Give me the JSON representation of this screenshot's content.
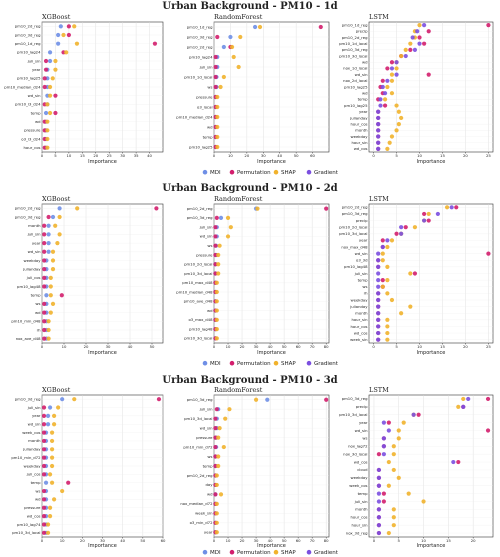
{
  "colors": {
    "MDI": "#6f8fe6",
    "Permutation": "#d31e6d",
    "SHAP": "#f1b22c",
    "Gradient": "#7b4fe0"
  },
  "legend": [
    "MDI",
    "Permutation",
    "SHAP",
    "Gradient"
  ],
  "chart_data": [
    {
      "type": "scatter",
      "title": "Urban Background - PM10 - 1d",
      "panels": [
        {
          "title": "XGBoost",
          "xlabel": "Importance",
          "xlim": [
            0,
            45
          ],
          "ticks": [
            0,
            5,
            10,
            15,
            20,
            25,
            30,
            35,
            40
          ],
          "features": [
            "pm10_2d_reg",
            "pm10_3d_reg",
            "pm10_1d_reg",
            "pm10_lag24",
            "juli_sin",
            "year",
            "pm10_lag25",
            "pm10_median_d24",
            "wd_sin",
            "pm10_l3_d24",
            "temp",
            "wd",
            "pressure",
            "o3_l3_d24",
            "hour_cos"
          ],
          "series": {
            "MDI": [
              7,
              6,
              6,
              3,
              3,
              2,
              2,
              2,
              2,
              2,
              1.5,
              1.5,
              1.5,
              1.5,
              1.5
            ],
            "Permutation": [
              10,
              10,
              42,
              8,
              1.5,
              1.5,
              1,
              1,
              5,
              1,
              5,
              1,
              1,
              1,
              1
            ],
            "SHAP": [
              12,
              8,
              13,
              9,
              5,
              5,
              4,
              3,
              3,
              2,
              3,
              2,
              2,
              2,
              2
            ]
          }
        },
        {
          "title": "RandomForest",
          "xlabel": "Importance",
          "xlim": [
            0,
            70
          ],
          "ticks": [
            0,
            10,
            20,
            30,
            40,
            50,
            60
          ],
          "features": [
            "pm10_1d_reg",
            "pm10_3d_reg",
            "pm10_2d_reg",
            "pm10_lag24",
            "juli_sin",
            "pm10_1d_local",
            "ws",
            "pressure",
            "o3_local",
            "pm10_median_d24",
            "wd",
            "temp",
            "pm10_lag25"
          ],
          "series": {
            "MDI": [
              25,
              10,
              6,
              2,
              2,
              1.5,
              1.5,
              1,
              1,
              1,
              1,
              1,
              1
            ],
            "Permutation": [
              65,
              2,
              10,
              1,
              1,
              1,
              1,
              1,
              1,
              1,
              1,
              1,
              1
            ],
            "SHAP": [
              28,
              16,
              11,
              12,
              15,
              6,
              4,
              2,
              2,
              2,
              2,
              2,
              2
            ]
          }
        },
        {
          "title": "LSTM",
          "xlabel": "Importance",
          "xlim": [
            -1,
            26
          ],
          "ticks": [
            0,
            5,
            10,
            15,
            20,
            25
          ],
          "features": [
            "pm10_1d_reg",
            "precip",
            "pm10_2d_reg",
            "pm10_1d_local",
            "pm10_3d_reg",
            "pm10_3d_local",
            "wd",
            "nox_1d_local",
            "wd_sin",
            "nox_2d_local",
            "pm10_lag25",
            "wd",
            "temp",
            "pm10_lag25",
            "year",
            "julianday",
            "hour_cos",
            "month",
            "weekday",
            "hour_sin",
            "wd_cos"
          ],
          "series": {
            "Permutation": [
              25,
              12,
              10,
              11,
              8,
              6,
              4,
              3,
              12,
              2,
              1.5,
              2,
              1,
              2.5,
              1,
              1,
              1,
              1,
              1,
              1,
              1
            ],
            "SHAP": [
              10,
              9,
              9,
              8,
              7,
              6,
              5,
              5,
              4,
              4,
              3,
              4,
              2.5,
              5,
              5.5,
              6,
              5.5,
              5,
              4,
              3.5,
              3
            ],
            "Gradient": [
              11,
              9.5,
              8.5,
              10,
              9,
              7,
              5,
              4,
              5,
              3,
              2,
              2.5,
              1.5,
              1.5,
              1,
              1,
              1,
              1,
              1,
              1,
              1
            ]
          }
        }
      ]
    },
    {
      "type": "scatter",
      "title": "Urban Background - PM10 - 2d",
      "panels": [
        {
          "title": "XGBoost",
          "xlabel": "Importance",
          "xlim": [
            0,
            55
          ],
          "ticks": [
            0,
            10,
            20,
            30,
            40,
            50
          ],
          "features": [
            "pm10_2d_reg",
            "pm10_3d_reg",
            "month",
            "juli_sin",
            "year",
            "wd_sin",
            "weekday",
            "julianday",
            "juli_cos",
            "pm10_lag48",
            "temp",
            "ws",
            "wd",
            "pm10_min_d48",
            "rh",
            "nox_ave_d48"
          ],
          "series": {
            "MDI": [
              8,
              5,
              3,
              3,
              3,
              3,
              2,
              2,
              2,
              2,
              2,
              2,
              2,
              2,
              2,
              2
            ],
            "Permutation": [
              52,
              3,
              1,
              1,
              1,
              1,
              1,
              1,
              1,
              1,
              9,
              1,
              1,
              1,
              1,
              1
            ],
            "SHAP": [
              16,
              8,
              6,
              8,
              7,
              5,
              5,
              5,
              4,
              4,
              4,
              5,
              4,
              3,
              3,
              3
            ]
          }
        },
        {
          "title": "RandomForest",
          "xlabel": "Importance",
          "xlim": [
            0,
            82
          ],
          "ticks": [
            0,
            10,
            20,
            30,
            40,
            50,
            60,
            70,
            80
          ],
          "features": [
            "pm10_2d_reg",
            "pm10_3d_reg",
            "juli_sin",
            "wd_sin",
            "ws",
            "pressure",
            "pm10_2d_local",
            "pm10_3d_local",
            "pm10_max_d48",
            "pm10_median_d48",
            "pm10_ave_d48",
            "wd",
            "o3_max_d48",
            "pm10_lag48",
            "pm10_3d_local"
          ],
          "series": {
            "MDI": [
              30,
              5,
              2,
              2,
              1.5,
              1.5,
              1,
              1,
              1,
              1,
              1,
              1,
              1,
              1,
              1
            ],
            "Permutation": [
              80,
              2,
              1,
              1,
              1,
              1,
              1,
              1,
              1,
              1,
              1,
              1,
              1,
              1,
              1
            ],
            "SHAP": [
              31,
              10,
              12,
              10,
              4,
              3,
              3,
              3,
              2,
              2,
              2,
              2,
              2,
              2,
              2
            ]
          }
        },
        {
          "title": "LSTM",
          "xlabel": "Importance",
          "xlim": [
            -1,
            26
          ],
          "ticks": [
            0,
            5,
            10,
            15,
            20,
            25
          ],
          "features": [
            "pm10_2d_reg",
            "pm10_3d_reg",
            "precip",
            "pm10_2d_local",
            "pm10_3d_local",
            "year",
            "nox_max_d48",
            "wd_sin",
            "o3_3d",
            "pm10_lag48",
            "juli_sin",
            "temp",
            "ws",
            "rh",
            "weekday",
            "julianday",
            "month",
            "hour_sin",
            "hour_cos",
            "wd_cos",
            "week_sin"
          ],
          "series": {
            "Permutation": [
              18,
              11,
              12,
              7,
              5,
              2,
              2,
              25,
              1,
              1,
              9,
              2,
              2,
              1,
              1,
              1,
              1,
              1,
              1,
              1,
              1
            ],
            "SHAP": [
              16,
              12,
              11,
              9,
              6,
              4,
              3,
              2,
              2,
              3,
              8,
              3,
              2,
              3,
              4,
              8,
              6,
              3,
              3,
              3,
              3
            ],
            "Gradient": [
              17,
              14,
              11,
              6,
              6,
              3,
              2,
              1,
              1,
              1,
              1,
              1,
              1,
              1,
              1,
              1,
              1,
              1,
              1,
              1,
              1
            ]
          }
        }
      ]
    },
    {
      "type": "scatter",
      "title": "Urban Background - PM10 - 3d",
      "panels": [
        {
          "title": "XGBoost",
          "xlabel": "Importance",
          "xlim": [
            0,
            60
          ],
          "ticks": [
            0,
            10,
            20,
            30,
            40,
            50,
            60
          ],
          "features": [
            "pm10_3d_reg",
            "juli_sin",
            "year",
            "wd_sin",
            "week_cos",
            "month",
            "julianday",
            "pm10_min_d72",
            "weekday",
            "juli_cos",
            "temp",
            "ws",
            "wd",
            "pressure",
            "wd_cos",
            "pm10_lag74",
            "pm10_3d_local"
          ],
          "series": {
            "MDI": [
              10,
              4,
              3,
              3,
              2,
              2,
              2,
              2,
              2,
              2,
              2,
              2,
              2,
              2,
              2,
              2,
              2
            ],
            "Permutation": [
              58,
              1,
              1,
              1,
              1,
              1,
              1,
              1,
              1,
              1,
              13,
              1,
              1,
              1,
              1,
              1,
              1
            ],
            "SHAP": [
              16,
              8,
              6,
              6,
              5,
              5,
              5,
              5,
              5,
              4,
              5,
              10,
              6,
              4,
              4,
              3,
              3
            ]
          }
        },
        {
          "title": "RandomForest",
          "xlabel": "Importance",
          "xlim": [
            0,
            82
          ],
          "ticks": [
            0,
            10,
            20,
            30,
            40,
            50,
            60,
            70,
            80
          ],
          "features": [
            "pm10_3d_reg",
            "juli_sin",
            "pm10_3d_local",
            "wd_sin",
            "pressure",
            "pm10_min_d72",
            "ws",
            "temp",
            "pm10_2d_reg",
            "day",
            "wd",
            "nox_median_d72",
            "week_sin",
            "o3_min_d72",
            "year"
          ],
          "series": {
            "MDI": [
              38,
              3,
              2,
              2,
              1.5,
              1.5,
              1,
              1,
              1,
              1,
              1,
              1,
              1,
              1,
              1
            ],
            "Permutation": [
              80,
              2,
              1,
              1,
              1,
              1,
              1,
              1,
              1,
              1,
              1,
              1,
              1,
              1,
              1
            ],
            "SHAP": [
              30,
              11,
              8,
              4,
              3,
              7,
              3,
              3,
              2,
              2,
              5,
              2,
              2,
              2,
              2
            ]
          }
        },
        {
          "title": "LSTM",
          "xlabel": "Importance",
          "xlim": [
            -1,
            24
          ],
          "ticks": [
            0,
            5,
            10,
            15,
            20
          ],
          "features": [
            "pm10_3d_reg",
            "precip",
            "pm10_3d_local",
            "year",
            "wd_sin",
            "ws",
            "nox_lag72",
            "nox_3d_local",
            "wd_cos",
            "cloud",
            "weekday",
            "week_cos",
            "temp",
            "juli_sin",
            "month",
            "hour_cos",
            "hour_sin",
            "nox_3d_reg"
          ],
          "series": {
            "Permutation": [
              23,
              18,
              9,
              3,
              23,
              2,
              2,
              1,
              17,
              1,
              1,
              1,
              2,
              2,
              1,
              1,
              1,
              1
            ],
            "SHAP": [
              18,
              17,
              8,
              6,
              5,
              5,
              4,
              4,
              3,
              4,
              5,
              3,
              7,
              10,
              4,
              4,
              4,
              3
            ],
            "Gradient": [
              19,
              18,
              8,
              2,
              3,
              2,
              2,
              2,
              16,
              1,
              1,
              1,
              1,
              1,
              1,
              1,
              1,
              1
            ]
          }
        }
      ]
    }
  ]
}
